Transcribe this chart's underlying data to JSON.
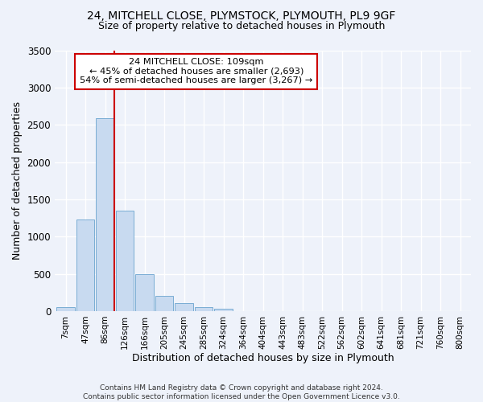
{
  "title_line1": "24, MITCHELL CLOSE, PLYMSTOCK, PLYMOUTH, PL9 9GF",
  "title_line2": "Size of property relative to detached houses in Plymouth",
  "xlabel": "Distribution of detached houses by size in Plymouth",
  "ylabel": "Number of detached properties",
  "bar_labels": [
    "7sqm",
    "47sqm",
    "86sqm",
    "126sqm",
    "166sqm",
    "205sqm",
    "245sqm",
    "285sqm",
    "324sqm",
    "364sqm",
    "404sqm",
    "443sqm",
    "483sqm",
    "522sqm",
    "562sqm",
    "602sqm",
    "641sqm",
    "681sqm",
    "721sqm",
    "760sqm",
    "800sqm"
  ],
  "bar_values": [
    50,
    1230,
    2590,
    1350,
    500,
    200,
    105,
    50,
    30,
    0,
    0,
    0,
    0,
    0,
    0,
    0,
    0,
    0,
    0,
    0,
    0
  ],
  "bar_color": "#c8daf0",
  "bar_edge_color": "#7aadd4",
  "ylim": [
    0,
    3500
  ],
  "yticks": [
    0,
    500,
    1000,
    1500,
    2000,
    2500,
    3000,
    3500
  ],
  "vline_color": "#cc0000",
  "annotation_title": "24 MITCHELL CLOSE: 109sqm",
  "annotation_line2": "← 45% of detached houses are smaller (2,693)",
  "annotation_line3": "54% of semi-detached houses are larger (3,267) →",
  "annotation_box_color": "#ffffff",
  "annotation_box_edge": "#cc0000",
  "footer_line1": "Contains HM Land Registry data © Crown copyright and database right 2024.",
  "footer_line2": "Contains public sector information licensed under the Open Government Licence v3.0.",
  "background_color": "#eef2fa",
  "plot_bg_color": "#eef2fa",
  "grid_color": "#ffffff"
}
